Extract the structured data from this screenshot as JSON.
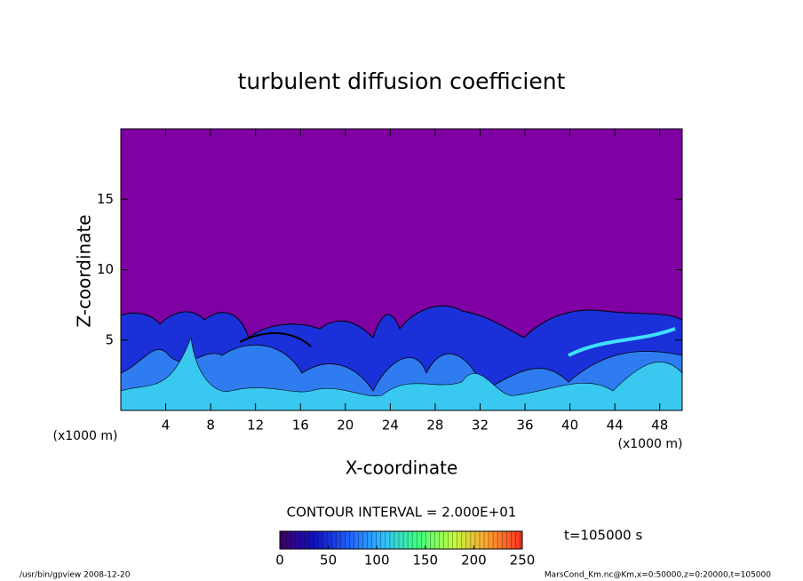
{
  "chart_data": {
    "type": "contour",
    "title": "turbulent diffusion coefficient",
    "x_label": "X-coordinate",
    "y_label": "Z-coordinate",
    "x_unit": "(x1000 m)",
    "y_unit": "(x1000 m)",
    "xlim": [
      0,
      50
    ],
    "xticks": [
      4,
      8,
      12,
      16,
      20,
      24,
      28,
      32,
      36,
      40,
      44,
      48
    ],
    "ylim": [
      0,
      20
    ],
    "yticks": [
      5,
      10,
      15
    ],
    "background_color": "#7f00a3",
    "contour_interval_label": "CONTOUR INTERVAL = 2.000E+01",
    "time_label": "t=105000 s",
    "colorbar": {
      "clim": [
        0,
        250
      ],
      "ticks": [
        0,
        50,
        100,
        150,
        200,
        250
      ],
      "colormap": [
        "#40006a",
        "#1010c0",
        "#2060ff",
        "#30c0ff",
        "#40ff80",
        "#c0ff40",
        "#ffa030",
        "#ff3020"
      ]
    },
    "footer_left": "/usr/bin/gpview  2008-12-20",
    "footer_right": "MarsCond_Km.nc@Km,x=0:50000,z=0:20000,t=105000"
  }
}
